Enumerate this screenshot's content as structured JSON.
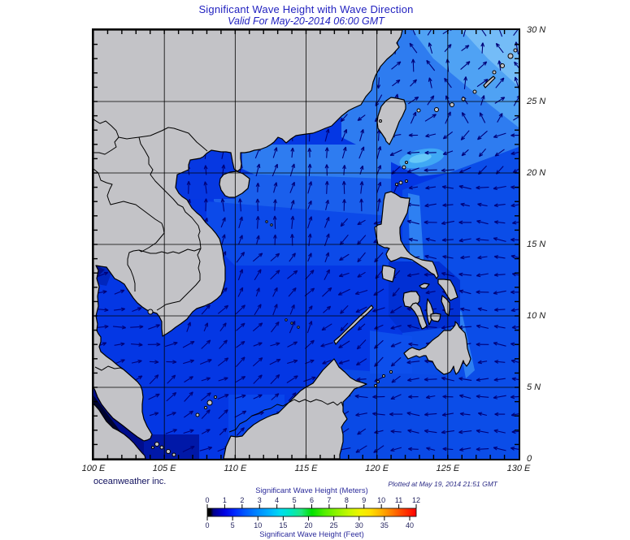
{
  "header": {
    "title": "Significant Wave Height with Wave Direction",
    "subtitle": "Valid For May-20-2014 06:00 GMT"
  },
  "footer": {
    "credit": "oceanweather inc.",
    "plotted": "Plotted at May 19, 2014 21:51 GMT"
  },
  "axes": {
    "lon_range": [
      100,
      130
    ],
    "lat_range": [
      0,
      30
    ],
    "grid_interval_deg": 5,
    "tick_interval_deg": 1,
    "lon_ticks": [
      {
        "deg": 100,
        "label": "100 E"
      },
      {
        "deg": 105,
        "label": "105 E"
      },
      {
        "deg": 110,
        "label": "110 E"
      },
      {
        "deg": 115,
        "label": "115 E"
      },
      {
        "deg": 120,
        "label": "120 E"
      },
      {
        "deg": 125,
        "label": "125 E"
      },
      {
        "deg": 130,
        "label": "130 E"
      }
    ],
    "lat_ticks": [
      {
        "deg": 30,
        "label": "30 N"
      },
      {
        "deg": 25,
        "label": "25 N"
      },
      {
        "deg": 20,
        "label": "20 N"
      },
      {
        "deg": 15,
        "label": "15 N"
      },
      {
        "deg": 10,
        "label": "10 N"
      },
      {
        "deg": 5,
        "label": "5 N"
      },
      {
        "deg": 0,
        "label": "0"
      }
    ]
  },
  "legend": {
    "meters_title": "Significant Wave Height (Meters)",
    "feet_title": "Significant Wave Height (Feet)",
    "meters_ticks": [
      0,
      1,
      2,
      3,
      4,
      5,
      6,
      7,
      8,
      9,
      10,
      11,
      12
    ],
    "feet_ticks": [
      0,
      5,
      10,
      15,
      20,
      25,
      30,
      35,
      40
    ],
    "gradient": [
      [
        "0%",
        "#000000"
      ],
      [
        "1.5%",
        "#000000"
      ],
      [
        "3%",
        "#00008b"
      ],
      [
        "8%",
        "#0000e0"
      ],
      [
        "13%",
        "#0028ff"
      ],
      [
        "18%",
        "#0058ff"
      ],
      [
        "24%",
        "#0088ff"
      ],
      [
        "30%",
        "#00b4ff"
      ],
      [
        "35%",
        "#00dcf0"
      ],
      [
        "40%",
        "#00e8c0"
      ],
      [
        "45%",
        "#20e880"
      ],
      [
        "50%",
        "#00e000"
      ],
      [
        "56%",
        "#50ee00"
      ],
      [
        "62%",
        "#90f400"
      ],
      [
        "68%",
        "#c8f800"
      ],
      [
        "73%",
        "#f0f400"
      ],
      [
        "78%",
        "#ffe000"
      ],
      [
        "83%",
        "#ffb400"
      ],
      [
        "88%",
        "#ff8000"
      ],
      [
        "93%",
        "#ff4800"
      ],
      [
        "100%",
        "#ff0000"
      ]
    ]
  },
  "palette": {
    "title_text": "#2222c0",
    "axis_text": "#1a1a1a",
    "credit_text": "#10105e",
    "plotted_text": "#2a2a85",
    "legend_number_text": "#23235f",
    "legend_title_text": "#2b2b9b",
    "land": "#c3c3c7",
    "coastline": "#000000",
    "grid": "#000000",
    "arrow": "#000078",
    "sea_base": "#0437e4",
    "sea_deep_visayas": "#0130d4",
    "sea_band_light": "#2e7cf0",
    "sea_band_mid": "#1a5fec",
    "sea_band_mid2": "#0c4ae9",
    "sea_tonkin": "#0638e2",
    "sea_pacific": "#0b4de8",
    "sea_celebes": "#0a4ae6",
    "sea_sulu": "#0d4fec",
    "sea_south_patch": "#0845ec",
    "sea_coastal_light": "#2e80f2",
    "sea_ne_light": "#4fa2f4",
    "sea_ne_pale": "#74bcf7",
    "sea_cyan_patch": "#3fa8f5",
    "sea_cyan_core": "#66c9f8",
    "sea_gulf_dark": "#0026be",
    "sea_gulf_darker": "#000f8c",
    "sea_malacca_dark": "#000d8c",
    "sea_malacca_black": "#000430",
    "sea_riau_dark": "#0018a8"
  }
}
